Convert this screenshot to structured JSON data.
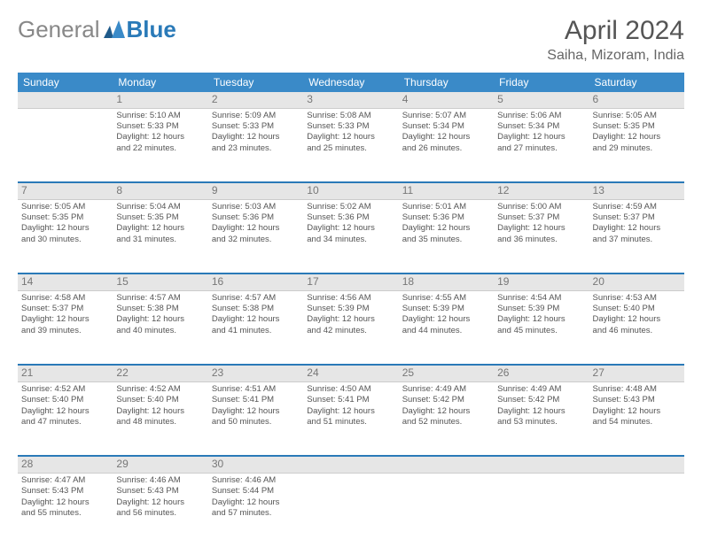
{
  "brand": {
    "part1": "General",
    "part2": "Blue"
  },
  "title": "April 2024",
  "location": "Saiha, Mizoram, India",
  "colors": {
    "header_blue": "#3a8ac8",
    "sep_blue": "#2a7ab8",
    "daynum_bg": "#e6e6e6"
  },
  "dayHeaders": [
    "Sunday",
    "Monday",
    "Tuesday",
    "Wednesday",
    "Thursday",
    "Friday",
    "Saturday"
  ],
  "weeks": [
    {
      "nums": [
        "",
        "1",
        "2",
        "3",
        "4",
        "5",
        "6"
      ],
      "cells": [
        null,
        {
          "sr": "Sunrise: 5:10 AM",
          "ss": "Sunset: 5:33 PM",
          "d1": "Daylight: 12 hours",
          "d2": "and 22 minutes."
        },
        {
          "sr": "Sunrise: 5:09 AM",
          "ss": "Sunset: 5:33 PM",
          "d1": "Daylight: 12 hours",
          "d2": "and 23 minutes."
        },
        {
          "sr": "Sunrise: 5:08 AM",
          "ss": "Sunset: 5:33 PM",
          "d1": "Daylight: 12 hours",
          "d2": "and 25 minutes."
        },
        {
          "sr": "Sunrise: 5:07 AM",
          "ss": "Sunset: 5:34 PM",
          "d1": "Daylight: 12 hours",
          "d2": "and 26 minutes."
        },
        {
          "sr": "Sunrise: 5:06 AM",
          "ss": "Sunset: 5:34 PM",
          "d1": "Daylight: 12 hours",
          "d2": "and 27 minutes."
        },
        {
          "sr": "Sunrise: 5:05 AM",
          "ss": "Sunset: 5:35 PM",
          "d1": "Daylight: 12 hours",
          "d2": "and 29 minutes."
        }
      ]
    },
    {
      "nums": [
        "7",
        "8",
        "9",
        "10",
        "11",
        "12",
        "13"
      ],
      "cells": [
        {
          "sr": "Sunrise: 5:05 AM",
          "ss": "Sunset: 5:35 PM",
          "d1": "Daylight: 12 hours",
          "d2": "and 30 minutes."
        },
        {
          "sr": "Sunrise: 5:04 AM",
          "ss": "Sunset: 5:35 PM",
          "d1": "Daylight: 12 hours",
          "d2": "and 31 minutes."
        },
        {
          "sr": "Sunrise: 5:03 AM",
          "ss": "Sunset: 5:36 PM",
          "d1": "Daylight: 12 hours",
          "d2": "and 32 minutes."
        },
        {
          "sr": "Sunrise: 5:02 AM",
          "ss": "Sunset: 5:36 PM",
          "d1": "Daylight: 12 hours",
          "d2": "and 34 minutes."
        },
        {
          "sr": "Sunrise: 5:01 AM",
          "ss": "Sunset: 5:36 PM",
          "d1": "Daylight: 12 hours",
          "d2": "and 35 minutes."
        },
        {
          "sr": "Sunrise: 5:00 AM",
          "ss": "Sunset: 5:37 PM",
          "d1": "Daylight: 12 hours",
          "d2": "and 36 minutes."
        },
        {
          "sr": "Sunrise: 4:59 AM",
          "ss": "Sunset: 5:37 PM",
          "d1": "Daylight: 12 hours",
          "d2": "and 37 minutes."
        }
      ]
    },
    {
      "nums": [
        "14",
        "15",
        "16",
        "17",
        "18",
        "19",
        "20"
      ],
      "cells": [
        {
          "sr": "Sunrise: 4:58 AM",
          "ss": "Sunset: 5:37 PM",
          "d1": "Daylight: 12 hours",
          "d2": "and 39 minutes."
        },
        {
          "sr": "Sunrise: 4:57 AM",
          "ss": "Sunset: 5:38 PM",
          "d1": "Daylight: 12 hours",
          "d2": "and 40 minutes."
        },
        {
          "sr": "Sunrise: 4:57 AM",
          "ss": "Sunset: 5:38 PM",
          "d1": "Daylight: 12 hours",
          "d2": "and 41 minutes."
        },
        {
          "sr": "Sunrise: 4:56 AM",
          "ss": "Sunset: 5:39 PM",
          "d1": "Daylight: 12 hours",
          "d2": "and 42 minutes."
        },
        {
          "sr": "Sunrise: 4:55 AM",
          "ss": "Sunset: 5:39 PM",
          "d1": "Daylight: 12 hours",
          "d2": "and 44 minutes."
        },
        {
          "sr": "Sunrise: 4:54 AM",
          "ss": "Sunset: 5:39 PM",
          "d1": "Daylight: 12 hours",
          "d2": "and 45 minutes."
        },
        {
          "sr": "Sunrise: 4:53 AM",
          "ss": "Sunset: 5:40 PM",
          "d1": "Daylight: 12 hours",
          "d2": "and 46 minutes."
        }
      ]
    },
    {
      "nums": [
        "21",
        "22",
        "23",
        "24",
        "25",
        "26",
        "27"
      ],
      "cells": [
        {
          "sr": "Sunrise: 4:52 AM",
          "ss": "Sunset: 5:40 PM",
          "d1": "Daylight: 12 hours",
          "d2": "and 47 minutes."
        },
        {
          "sr": "Sunrise: 4:52 AM",
          "ss": "Sunset: 5:40 PM",
          "d1": "Daylight: 12 hours",
          "d2": "and 48 minutes."
        },
        {
          "sr": "Sunrise: 4:51 AM",
          "ss": "Sunset: 5:41 PM",
          "d1": "Daylight: 12 hours",
          "d2": "and 50 minutes."
        },
        {
          "sr": "Sunrise: 4:50 AM",
          "ss": "Sunset: 5:41 PM",
          "d1": "Daylight: 12 hours",
          "d2": "and 51 minutes."
        },
        {
          "sr": "Sunrise: 4:49 AM",
          "ss": "Sunset: 5:42 PM",
          "d1": "Daylight: 12 hours",
          "d2": "and 52 minutes."
        },
        {
          "sr": "Sunrise: 4:49 AM",
          "ss": "Sunset: 5:42 PM",
          "d1": "Daylight: 12 hours",
          "d2": "and 53 minutes."
        },
        {
          "sr": "Sunrise: 4:48 AM",
          "ss": "Sunset: 5:43 PM",
          "d1": "Daylight: 12 hours",
          "d2": "and 54 minutes."
        }
      ]
    },
    {
      "nums": [
        "28",
        "29",
        "30",
        "",
        "",
        "",
        ""
      ],
      "cells": [
        {
          "sr": "Sunrise: 4:47 AM",
          "ss": "Sunset: 5:43 PM",
          "d1": "Daylight: 12 hours",
          "d2": "and 55 minutes."
        },
        {
          "sr": "Sunrise: 4:46 AM",
          "ss": "Sunset: 5:43 PM",
          "d1": "Daylight: 12 hours",
          "d2": "and 56 minutes."
        },
        {
          "sr": "Sunrise: 4:46 AM",
          "ss": "Sunset: 5:44 PM",
          "d1": "Daylight: 12 hours",
          "d2": "and 57 minutes."
        },
        null,
        null,
        null,
        null
      ]
    }
  ]
}
